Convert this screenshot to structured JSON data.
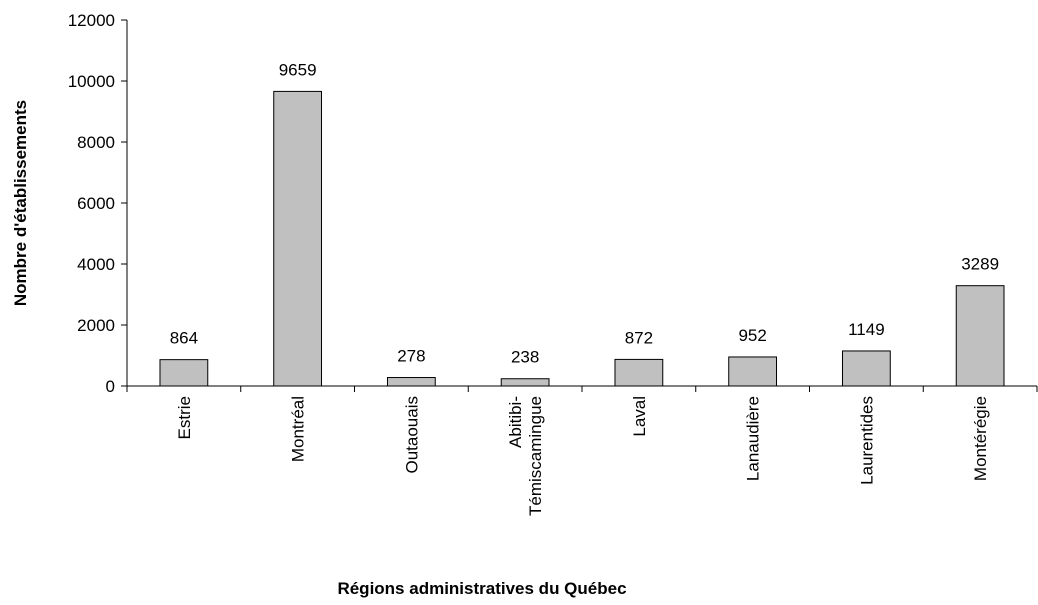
{
  "chart_data": {
    "type": "bar",
    "x_label": "Régions administratives du Québec",
    "y_label": "Nombre d'établissements",
    "categories": [
      "Estrie",
      "Montréal",
      "Outaouais",
      "Abitibi-Témiscamingue",
      "Laval",
      "Lanaudière",
      "Laurentides",
      "Montérégie"
    ],
    "values": [
      864,
      9659,
      278,
      238,
      872,
      952,
      1149,
      3289
    ],
    "color": "#c0c0c0",
    "ylim": [
      0,
      12000
    ],
    "yticks": [
      0,
      2000,
      4000,
      6000,
      8000,
      10000,
      12000
    ],
    "grid": false
  }
}
